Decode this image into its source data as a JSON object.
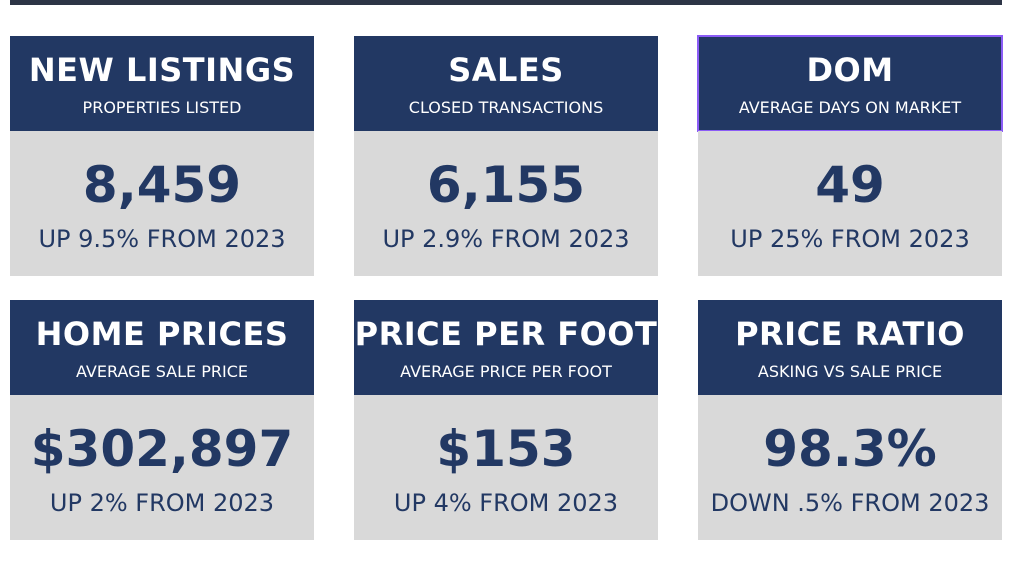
{
  "stats": [
    {
      "title": "NEW LISTINGS",
      "subtitle": "PROPERTIES LISTED",
      "value": "8,459",
      "change": "UP 9.5% FROM 2023"
    },
    {
      "title": "SALES",
      "subtitle": "CLOSED TRANSACTIONS",
      "value": "6,155",
      "change": "UP 2.9% FROM 2023"
    },
    {
      "title": "DOM",
      "subtitle": "AVERAGE DAYS ON MARKET",
      "value": "49",
      "change": "UP 25% FROM 2023"
    },
    {
      "title": "HOME PRICES",
      "subtitle": "AVERAGE SALE PRICE",
      "value": "$302,897",
      "change": "UP 2% FROM 2023"
    },
    {
      "title": "PRICE PER FOOT",
      "subtitle": "AVERAGE PRICE PER FOOT",
      "value": "$153",
      "change": "UP 4% FROM 2023"
    },
    {
      "title": "PRICE RATIO",
      "subtitle": "ASKING VS SALE PRICE",
      "value": "98.3%",
      "change": "DOWN .5% FROM 2023"
    }
  ],
  "colors": {
    "header_bg": "#223863",
    "body_bg": "#d9d9d9",
    "text_dark": "#223863",
    "selection_outline": "#8b5cf6"
  }
}
